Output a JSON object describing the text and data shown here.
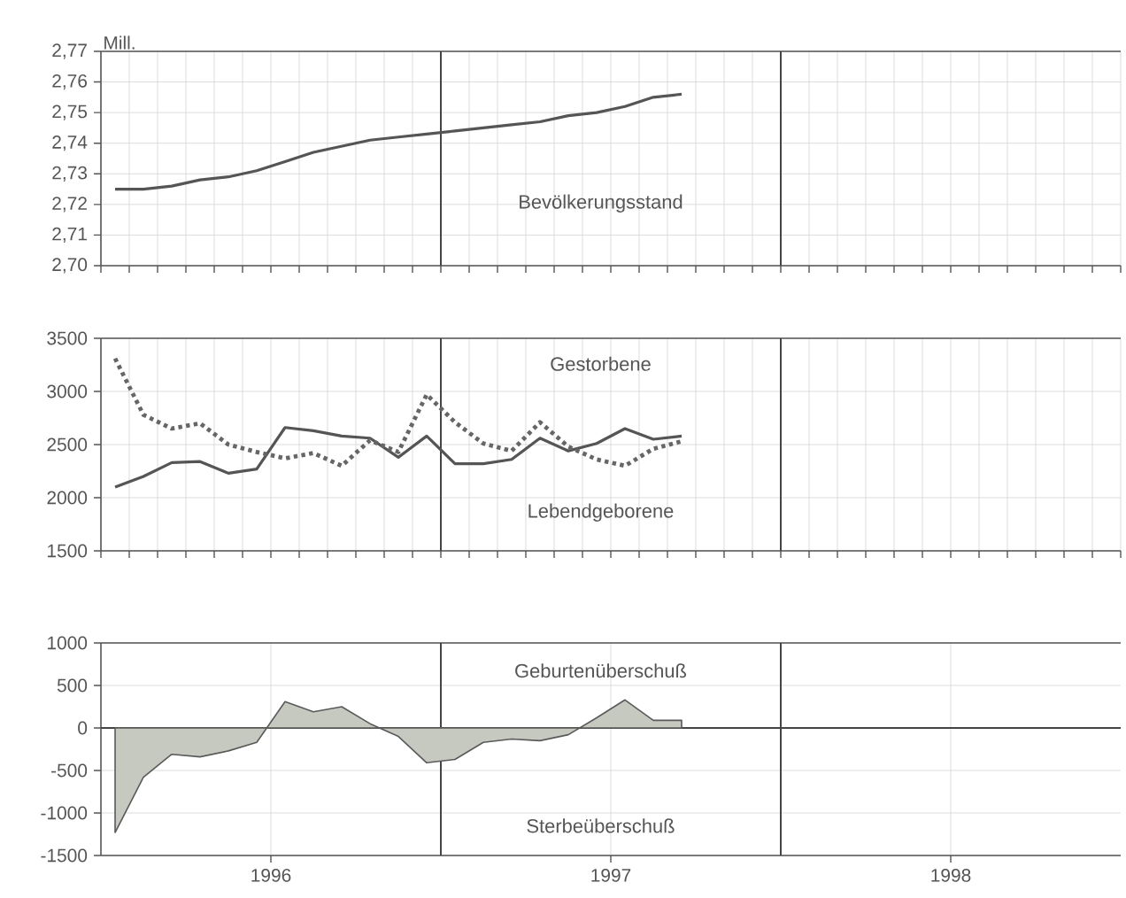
{
  "chart_data": [
    {
      "type": "line",
      "ylabel": "Mill.",
      "tick_labels": "y",
      "grid": true,
      "x": [
        "1996-01-16",
        "1996-02-16",
        "1996-03-16",
        "1996-04-16",
        "1996-05-16",
        "1996-06-16",
        "1996-07-16",
        "1996-08-16",
        "1996-09-16",
        "1996-10-16",
        "1996-11-16",
        "1996-12-16",
        "1997-01-16",
        "1997-02-16",
        "1997-03-16",
        "1997-04-16",
        "1997-05-16",
        "1997-06-16",
        "1997-07-16",
        "1997-08-16",
        "1997-09-16"
      ],
      "series": [
        {
          "name": "Bevölkerungsstand",
          "color": "#555555",
          "values": [
            2.725,
            2.725,
            2.726,
            2.728,
            2.729,
            2.731,
            2.734,
            2.737,
            2.739,
            2.741,
            2.742,
            2.743,
            2.744,
            2.745,
            2.746,
            2.747,
            2.749,
            2.75,
            2.752,
            2.755,
            2.756
          ]
        }
      ],
      "xlim": [
        "1996-01-01",
        "1999-01-01"
      ],
      "xticks": [
        {
          "value": "1996-01-01",
          "label": null
        },
        {
          "value": "1996-02-01",
          "label": null
        },
        {
          "value": "1996-03-01",
          "label": null
        },
        {
          "value": "1996-04-01",
          "label": null
        },
        {
          "value": "1996-05-01",
          "label": null
        },
        {
          "value": "1996-06-01",
          "label": null
        },
        {
          "value": "1996-07-01",
          "label": null
        },
        {
          "value": "1996-08-01",
          "label": null
        },
        {
          "value": "1996-09-01",
          "label": null
        },
        {
          "value": "1996-10-01",
          "label": null
        },
        {
          "value": "1996-11-01",
          "label": null
        },
        {
          "value": "1996-12-01",
          "label": null
        },
        {
          "value": "1997-01-01",
          "label": null
        },
        {
          "value": "1997-02-01",
          "label": null
        },
        {
          "value": "1997-03-01",
          "label": null
        },
        {
          "value": "1997-04-01",
          "label": null
        },
        {
          "value": "1997-05-01",
          "label": null
        },
        {
          "value": "1997-06-01",
          "label": null
        },
        {
          "value": "1997-07-01",
          "label": null
        },
        {
          "value": "1997-08-01",
          "label": null
        },
        {
          "value": "1997-09-01",
          "label": null
        },
        {
          "value": "1997-10-01",
          "label": null
        },
        {
          "value": "1997-11-01",
          "label": null
        },
        {
          "value": "1997-12-01",
          "label": null
        },
        {
          "value": "1998-01-01",
          "label": null
        },
        {
          "value": "1998-02-01",
          "label": null
        },
        {
          "value": "1998-03-01",
          "label": null
        },
        {
          "value": "1998-04-01",
          "label": null
        },
        {
          "value": "1998-05-01",
          "label": null
        },
        {
          "value": "1998-06-01",
          "label": null
        },
        {
          "value": "1998-07-01",
          "label": null
        },
        {
          "value": "1998-08-01",
          "label": null
        },
        {
          "value": "1998-09-01",
          "label": null
        },
        {
          "value": "1998-10-01",
          "label": null
        },
        {
          "value": "1998-11-01",
          "label": null
        },
        {
          "value": "1998-12-01",
          "label": null
        },
        {
          "value": "1999-01-01",
          "label": null
        }
      ],
      "ylim": [
        2.7,
        2.77
      ],
      "yticks": [
        {
          "value": 2.7,
          "label": "2,70"
        },
        {
          "value": 2.71,
          "label": "2,71"
        },
        {
          "value": 2.72,
          "label": "2,72"
        },
        {
          "value": 2.73,
          "label": "2,73"
        },
        {
          "value": 2.74,
          "label": "2,74"
        },
        {
          "value": 2.75,
          "label": "2,75"
        },
        {
          "value": 2.76,
          "label": "2,76"
        },
        {
          "value": 2.77,
          "label": "2,77"
        }
      ],
      "ref_lines": [
        {
          "axis": "x",
          "value": "1997-01-01",
          "color": "#444444"
        },
        {
          "axis": "x",
          "value": "1998-01-01",
          "color": "#444444"
        }
      ]
    },
    {
      "type": "line",
      "tick_labels": "y",
      "grid": true,
      "x": [
        "1996-01-16",
        "1996-02-16",
        "1996-03-16",
        "1996-04-16",
        "1996-05-16",
        "1996-06-16",
        "1996-07-16",
        "1996-08-16",
        "1996-09-16",
        "1996-10-16",
        "1996-11-16",
        "1996-12-16",
        "1997-01-16",
        "1997-02-16",
        "1997-03-16",
        "1997-04-16",
        "1997-05-16",
        "1997-06-16",
        "1997-07-16",
        "1997-08-16",
        "1997-09-16"
      ],
      "series": [
        {
          "name": "Lebendgeborene",
          "color": "#555555",
          "line_style": "solid",
          "values": [
            2100,
            2200,
            2330,
            2340,
            2230,
            2270,
            2660,
            2630,
            2580,
            2560,
            2380,
            2580,
            2320,
            2320,
            2360,
            2560,
            2440,
            2510,
            2650,
            2550,
            2580
          ]
        },
        {
          "name": "Gestorbene",
          "color": "#666666",
          "line_style": "dotted",
          "values": [
            3310,
            2780,
            2650,
            2700,
            2500,
            2430,
            2370,
            2420,
            2300,
            2540,
            2430,
            2970,
            2710,
            2510,
            2440,
            2710,
            2480,
            2360,
            2300,
            2460,
            2530
          ]
        }
      ],
      "xlim": [
        "1996-01-01",
        "1999-01-01"
      ],
      "xticks": [
        {
          "value": "1996-01-01",
          "label": null
        },
        {
          "value": "1996-02-01",
          "label": null
        },
        {
          "value": "1996-03-01",
          "label": null
        },
        {
          "value": "1996-04-01",
          "label": null
        },
        {
          "value": "1996-05-01",
          "label": null
        },
        {
          "value": "1996-06-01",
          "label": null
        },
        {
          "value": "1996-07-01",
          "label": null
        },
        {
          "value": "1996-08-01",
          "label": null
        },
        {
          "value": "1996-09-01",
          "label": null
        },
        {
          "value": "1996-10-01",
          "label": null
        },
        {
          "value": "1996-11-01",
          "label": null
        },
        {
          "value": "1996-12-01",
          "label": null
        },
        {
          "value": "1997-01-01",
          "label": null
        },
        {
          "value": "1997-02-01",
          "label": null
        },
        {
          "value": "1997-03-01",
          "label": null
        },
        {
          "value": "1997-04-01",
          "label": null
        },
        {
          "value": "1997-05-01",
          "label": null
        },
        {
          "value": "1997-06-01",
          "label": null
        },
        {
          "value": "1997-07-01",
          "label": null
        },
        {
          "value": "1997-08-01",
          "label": null
        },
        {
          "value": "1997-09-01",
          "label": null
        },
        {
          "value": "1997-10-01",
          "label": null
        },
        {
          "value": "1997-11-01",
          "label": null
        },
        {
          "value": "1997-12-01",
          "label": null
        },
        {
          "value": "1998-01-01",
          "label": null
        },
        {
          "value": "1998-02-01",
          "label": null
        },
        {
          "value": "1998-03-01",
          "label": null
        },
        {
          "value": "1998-04-01",
          "label": null
        },
        {
          "value": "1998-05-01",
          "label": null
        },
        {
          "value": "1998-06-01",
          "label": null
        },
        {
          "value": "1998-07-01",
          "label": null
        },
        {
          "value": "1998-08-01",
          "label": null
        },
        {
          "value": "1998-09-01",
          "label": null
        },
        {
          "value": "1998-10-01",
          "label": null
        },
        {
          "value": "1998-11-01",
          "label": null
        },
        {
          "value": "1998-12-01",
          "label": null
        },
        {
          "value": "1999-01-01",
          "label": null
        }
      ],
      "ylim": [
        1500,
        3500
      ],
      "yticks": [
        1500,
        2000,
        2500,
        3000,
        3500
      ],
      "ref_lines": [
        {
          "axis": "x",
          "value": "1997-01-01",
          "color": "#444444"
        },
        {
          "axis": "x",
          "value": "1998-01-01",
          "color": "#444444"
        }
      ]
    },
    {
      "type": "area",
      "grid": true,
      "annotations": [
        "Geburtenüberschuß",
        "Sterbeüberschuß"
      ],
      "x": [
        "1996-01-16",
        "1996-02-16",
        "1996-03-16",
        "1996-04-16",
        "1996-05-16",
        "1996-06-16",
        "1996-07-16",
        "1996-08-16",
        "1996-09-16",
        "1996-10-16",
        "1996-11-16",
        "1996-12-16",
        "1997-01-16",
        "1997-02-16",
        "1997-03-16",
        "1997-04-16",
        "1997-05-16",
        "1997-06-16",
        "1997-07-16",
        "1997-08-16",
        "1997-09-16"
      ],
      "series": [
        {
          "color": "#c6c9c0",
          "values": [
            -1230,
            -580,
            -310,
            -340,
            -270,
            -170,
            310,
            190,
            250,
            50,
            -100,
            -410,
            -370,
            -170,
            -130,
            -150,
            -80,
            120,
            330,
            90,
            90
          ]
        }
      ],
      "xlim": [
        "1996-01-01",
        "1999-01-01"
      ],
      "xticks": [
        {
          "value": "1996-07-01",
          "label": "1996"
        },
        {
          "value": "1997-07-01",
          "label": "1997"
        },
        {
          "value": "1998-07-01",
          "label": "1998"
        }
      ],
      "ylim": [
        -1500,
        1000
      ],
      "yticks": [
        -1500,
        -1000,
        -500,
        0,
        500,
        1000
      ],
      "ref_lines": [
        {
          "axis": "x",
          "value": "1997-01-01",
          "color": "#444444"
        },
        {
          "axis": "x",
          "value": "1998-01-01",
          "color": "#444444"
        },
        {
          "axis": "y",
          "value": 0,
          "color": "#444444"
        }
      ]
    }
  ]
}
